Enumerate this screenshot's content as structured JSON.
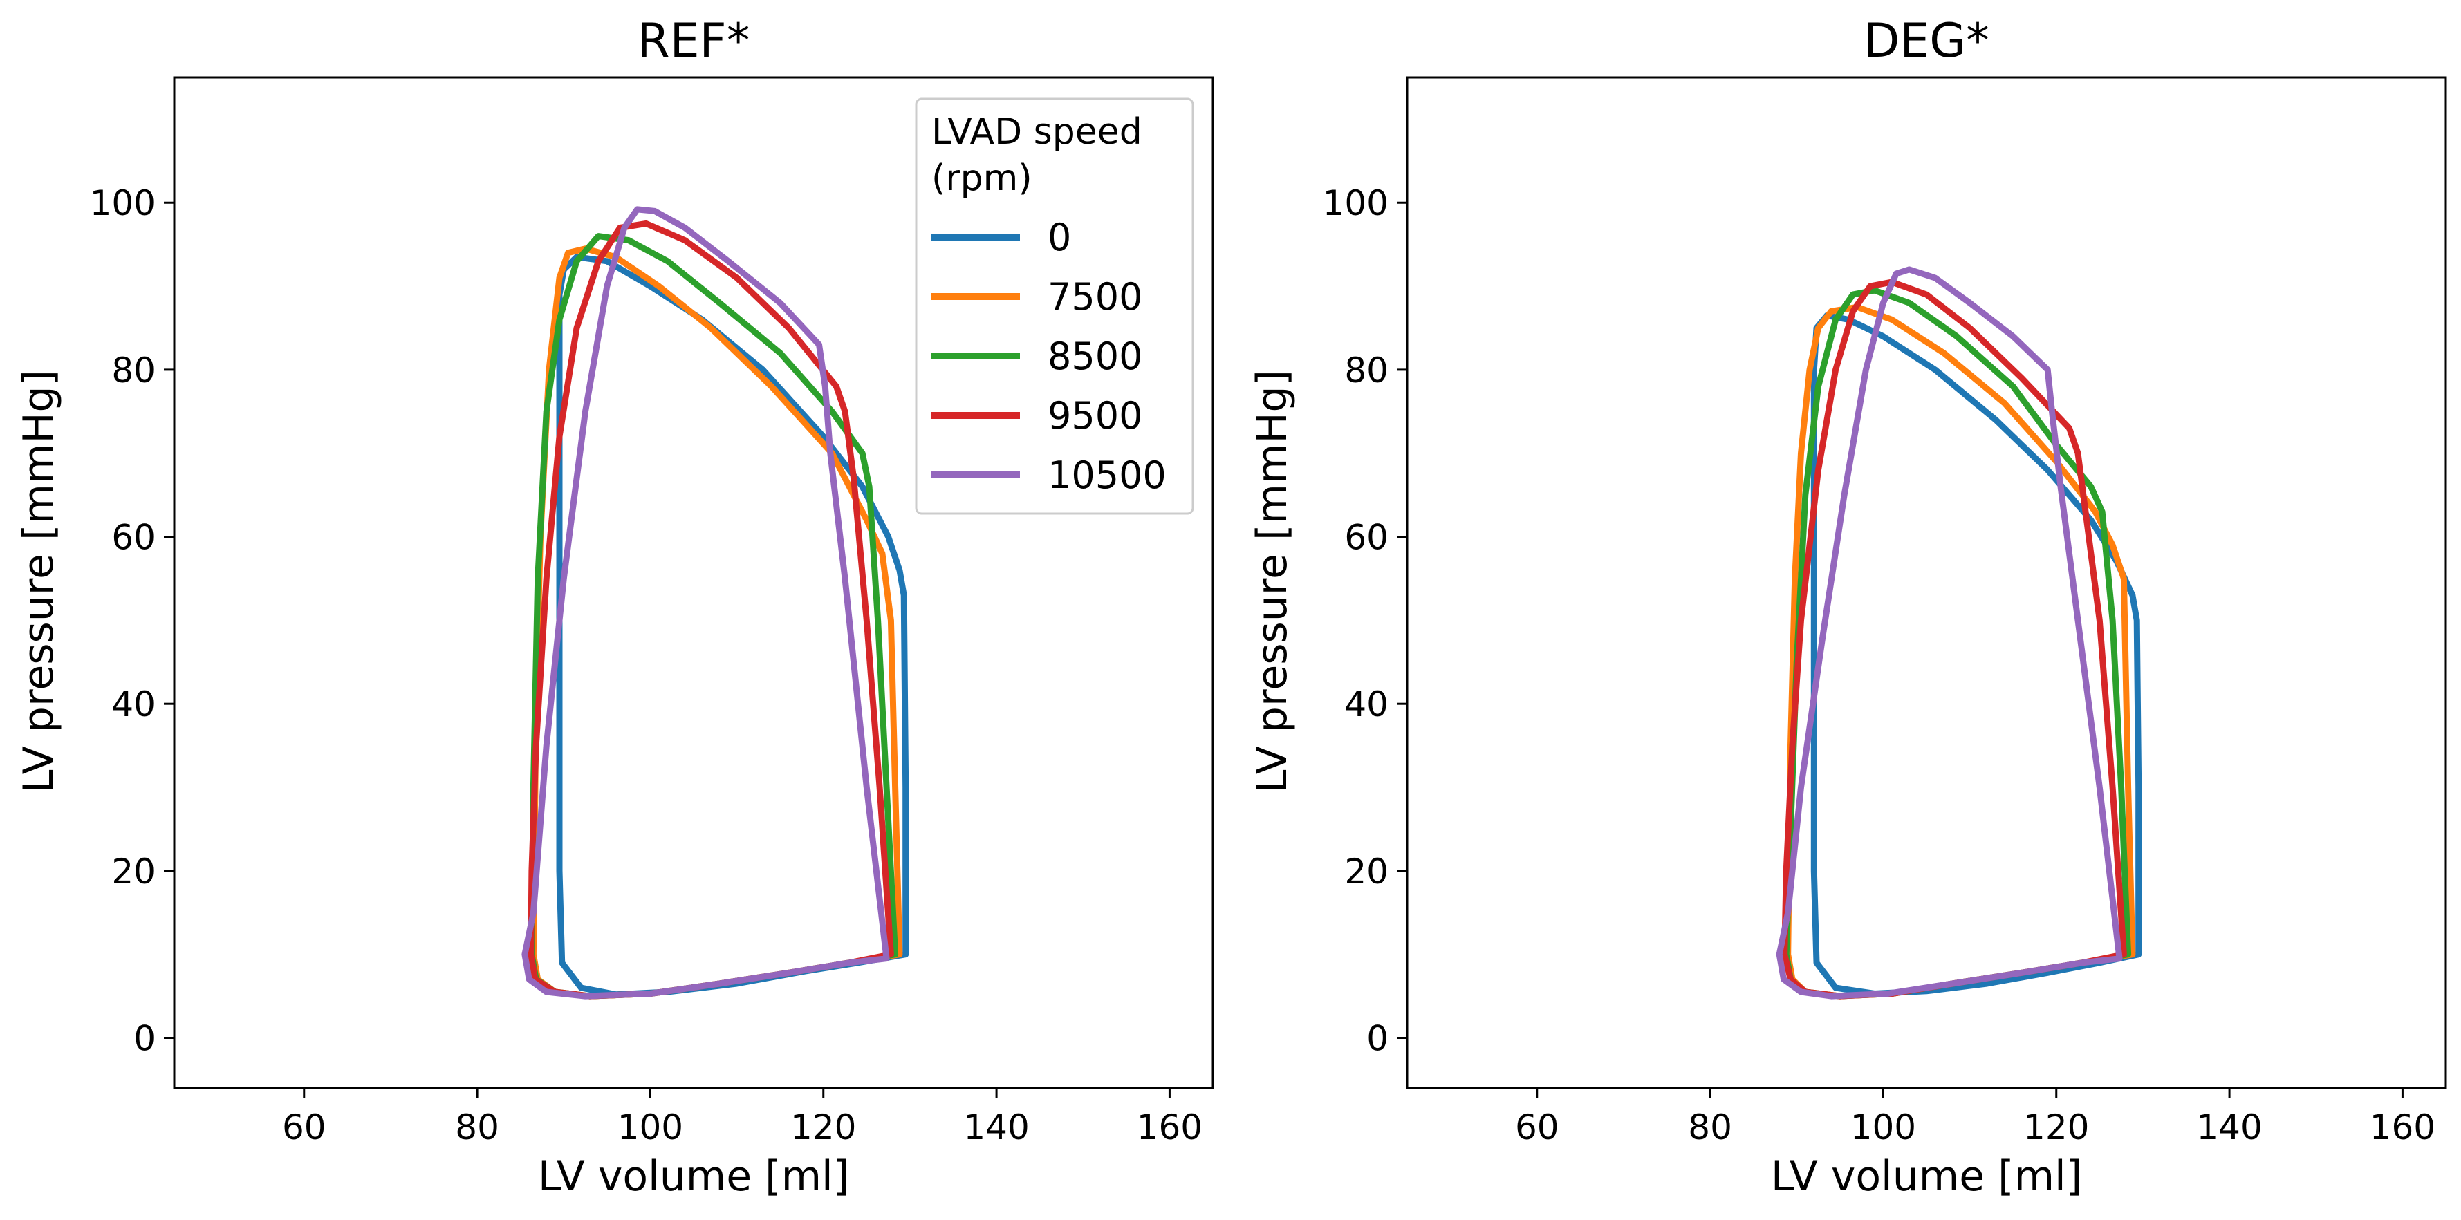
{
  "chart_data": [
    {
      "type": "line",
      "title": "REF*",
      "xlabel": "LV volume [ml]",
      "ylabel": "LV pressure [mmHg]",
      "xlim": [
        45,
        165
      ],
      "ylim": [
        -6,
        115
      ],
      "xticks": [
        60,
        80,
        100,
        120,
        140,
        160
      ],
      "yticks": [
        0,
        20,
        40,
        60,
        80,
        100
      ],
      "grid": false,
      "legend": {
        "title": "LVAD speed\n(rpm)",
        "title_lines": [
          "LVAD speed",
          "(rpm)"
        ],
        "location": "upper right"
      },
      "series": [
        {
          "name": "0",
          "color": "#1f77b4",
          "x": [
            129.5,
            129.5,
            129.3,
            128.8,
            127.5,
            124.5,
            120.0,
            113.0,
            106.0,
            100.0,
            95.0,
            91.5,
            90.0,
            89.5,
            89.5,
            89.5,
            89.5,
            89.5,
            89.8,
            92.0,
            96.0,
            102.0,
            110.0,
            118.0,
            124.0,
            129.5
          ],
          "y": [
            10.0,
            30.0,
            53.0,
            56.0,
            60.0,
            66.0,
            72.0,
            80.0,
            86.0,
            90.0,
            93.0,
            93.5,
            92.0,
            89.0,
            80.0,
            60.0,
            40.0,
            20.0,
            9.0,
            6.0,
            5.2,
            5.5,
            6.5,
            8.0,
            9.0,
            10.0
          ]
        },
        {
          "name": "7500",
          "color": "#ff7f0e",
          "x": [
            128.8,
            128.3,
            127.8,
            126.8,
            125.0,
            121.0,
            114.0,
            107.0,
            101.0,
            96.0,
            92.5,
            90.5,
            89.5,
            88.3,
            87.3,
            86.8,
            86.5,
            87.0,
            89.0,
            93.0,
            100.0,
            108.0,
            116.0,
            123.0,
            128.8
          ],
          "y": [
            10.0,
            30.0,
            50.0,
            58.0,
            62.0,
            70.0,
            78.0,
            85.0,
            90.0,
            93.5,
            94.5,
            94.0,
            91.0,
            80.0,
            60.0,
            40.0,
            10.0,
            7.0,
            5.5,
            5.0,
            5.3,
            6.5,
            7.8,
            9.0,
            10.0
          ]
        },
        {
          "name": "8500",
          "color": "#2ca02c",
          "x": [
            128.3,
            127.3,
            126.3,
            125.3,
            124.5,
            121.0,
            115.0,
            108.0,
            102.0,
            97.5,
            94.0,
            91.5,
            89.5,
            88.0,
            87.0,
            86.5,
            86.3,
            86.8,
            89.0,
            93.0,
            100.0,
            108.0,
            116.0,
            123.0,
            128.3
          ],
          "y": [
            10.0,
            30.0,
            50.0,
            66.0,
            70.0,
            75.0,
            82.0,
            88.0,
            93.0,
            95.5,
            96.0,
            93.0,
            86.0,
            75.0,
            55.0,
            30.0,
            10.0,
            7.0,
            5.5,
            5.0,
            5.3,
            6.5,
            7.8,
            9.0,
            10.0
          ]
        },
        {
          "name": "9500",
          "color": "#d62728",
          "x": [
            127.8,
            126.5,
            125.0,
            123.5,
            122.5,
            121.5,
            116.0,
            110.0,
            104.0,
            99.5,
            96.5,
            94.0,
            91.5,
            89.5,
            88.0,
            86.8,
            86.3,
            86.2,
            86.7,
            89.0,
            93.0,
            100.0,
            108.0,
            116.0,
            123.0,
            127.8
          ],
          "y": [
            10.0,
            30.0,
            50.0,
            67.0,
            75.0,
            78.0,
            85.0,
            91.0,
            95.5,
            97.5,
            97.0,
            93.0,
            85.0,
            72.0,
            55.0,
            35.0,
            20.0,
            10.0,
            7.0,
            5.5,
            5.0,
            5.3,
            6.5,
            7.8,
            9.0,
            10.0
          ]
        },
        {
          "name": "10500",
          "color": "#9467bd",
          "x": [
            127.3,
            125.0,
            122.5,
            120.8,
            120.2,
            119.5,
            115.0,
            109.0,
            104.0,
            100.5,
            98.5,
            97.0,
            95.0,
            92.5,
            90.0,
            88.0,
            86.5,
            85.5,
            86.0,
            88.0,
            92.5,
            100.0,
            108.0,
            116.0,
            123.0,
            127.3
          ],
          "y": [
            9.5,
            30.0,
            55.0,
            70.0,
            78.0,
            83.0,
            88.0,
            93.0,
            97.0,
            99.0,
            99.2,
            97.0,
            90.0,
            75.0,
            55.0,
            35.0,
            15.0,
            10.0,
            7.0,
            5.5,
            5.0,
            5.3,
            6.5,
            7.8,
            9.0,
            9.5
          ]
        }
      ]
    },
    {
      "type": "line",
      "title": "DEG*",
      "xlabel": "LV volume [ml]",
      "ylabel": "LV pressure [mmHg]",
      "xlim": [
        45,
        165
      ],
      "ylim": [
        -6,
        115
      ],
      "xticks": [
        60,
        80,
        100,
        120,
        140,
        160
      ],
      "yticks": [
        0,
        20,
        40,
        60,
        80,
        100
      ],
      "grid": false,
      "series": [
        {
          "name": "0",
          "color": "#1f77b4",
          "x": [
            129.5,
            129.5,
            129.3,
            128.8,
            127.0,
            124.0,
            119.0,
            113.0,
            106.0,
            100.0,
            96.0,
            93.5,
            92.3,
            92.0,
            92.0,
            92.0,
            92.0,
            92.0,
            92.3,
            94.5,
            99.0,
            105.0,
            112.0,
            119.0,
            125.0,
            129.5
          ],
          "y": [
            10.0,
            30.0,
            50.0,
            53.0,
            57.0,
            62.0,
            68.0,
            74.0,
            80.0,
            84.0,
            86.0,
            86.5,
            85.0,
            80.0,
            70.0,
            55.0,
            35.0,
            20.0,
            9.0,
            6.0,
            5.3,
            5.6,
            6.5,
            7.8,
            9.0,
            10.0
          ]
        },
        {
          "name": "7500",
          "color": "#ff7f0e",
          "x": [
            128.8,
            128.3,
            127.8,
            126.5,
            124.5,
            120.0,
            114.0,
            107.0,
            101.0,
            97.0,
            94.0,
            92.5,
            91.5,
            90.5,
            89.8,
            89.3,
            89.0,
            89.5,
            91.0,
            95.0,
            101.0,
            108.0,
            116.0,
            123.0,
            128.8
          ],
          "y": [
            10.0,
            30.0,
            55.0,
            59.0,
            63.0,
            69.0,
            76.0,
            82.0,
            86.0,
            87.5,
            87.0,
            85.0,
            80.0,
            70.0,
            55.0,
            35.0,
            10.0,
            7.0,
            5.5,
            5.0,
            5.3,
            6.5,
            7.8,
            9.0,
            10.0
          ]
        },
        {
          "name": "8500",
          "color": "#2ca02c",
          "x": [
            128.3,
            127.5,
            126.5,
            125.3,
            124.0,
            120.0,
            115.0,
            108.5,
            103.0,
            99.0,
            96.5,
            94.5,
            92.5,
            91.0,
            90.0,
            89.3,
            88.8,
            89.3,
            91.0,
            95.0,
            101.0,
            108.0,
            116.0,
            123.0,
            128.3
          ],
          "y": [
            10.0,
            30.0,
            50.0,
            63.0,
            66.0,
            71.0,
            78.0,
            84.0,
            88.0,
            89.5,
            89.0,
            86.0,
            78.0,
            65.0,
            45.0,
            25.0,
            10.0,
            7.0,
            5.5,
            5.0,
            5.3,
            6.5,
            7.8,
            9.0,
            10.0
          ]
        },
        {
          "name": "9500",
          "color": "#d62728",
          "x": [
            127.8,
            126.5,
            125.0,
            123.5,
            122.5,
            121.5,
            116.0,
            110.0,
            105.0,
            101.0,
            98.5,
            96.5,
            94.5,
            92.5,
            90.5,
            89.5,
            88.8,
            88.6,
            89.3,
            91.0,
            95.0,
            101.0,
            108.0,
            116.0,
            123.0,
            127.8
          ],
          "y": [
            10.0,
            30.0,
            50.0,
            62.0,
            70.0,
            73.0,
            79.0,
            85.0,
            89.0,
            90.5,
            90.0,
            87.0,
            80.0,
            68.0,
            50.0,
            35.0,
            20.0,
            10.0,
            7.0,
            5.5,
            5.0,
            5.3,
            6.5,
            7.8,
            9.0,
            10.0
          ]
        },
        {
          "name": "10500",
          "color": "#9467bd",
          "x": [
            127.3,
            125.0,
            122.5,
            120.5,
            119.5,
            119.0,
            115.0,
            110.0,
            106.0,
            103.0,
            101.5,
            100.0,
            98.0,
            95.5,
            93.0,
            90.5,
            89.0,
            88.0,
            88.5,
            90.5,
            94.0,
            100.5,
            108.0,
            116.0,
            123.0,
            127.3
          ],
          "y": [
            9.5,
            30.0,
            50.0,
            66.0,
            75.0,
            80.0,
            84.0,
            88.0,
            91.0,
            92.0,
            91.5,
            88.0,
            80.0,
            65.0,
            48.0,
            30.0,
            15.0,
            10.0,
            7.0,
            5.5,
            5.0,
            5.3,
            6.5,
            7.8,
            9.0,
            9.5
          ]
        }
      ]
    }
  ]
}
